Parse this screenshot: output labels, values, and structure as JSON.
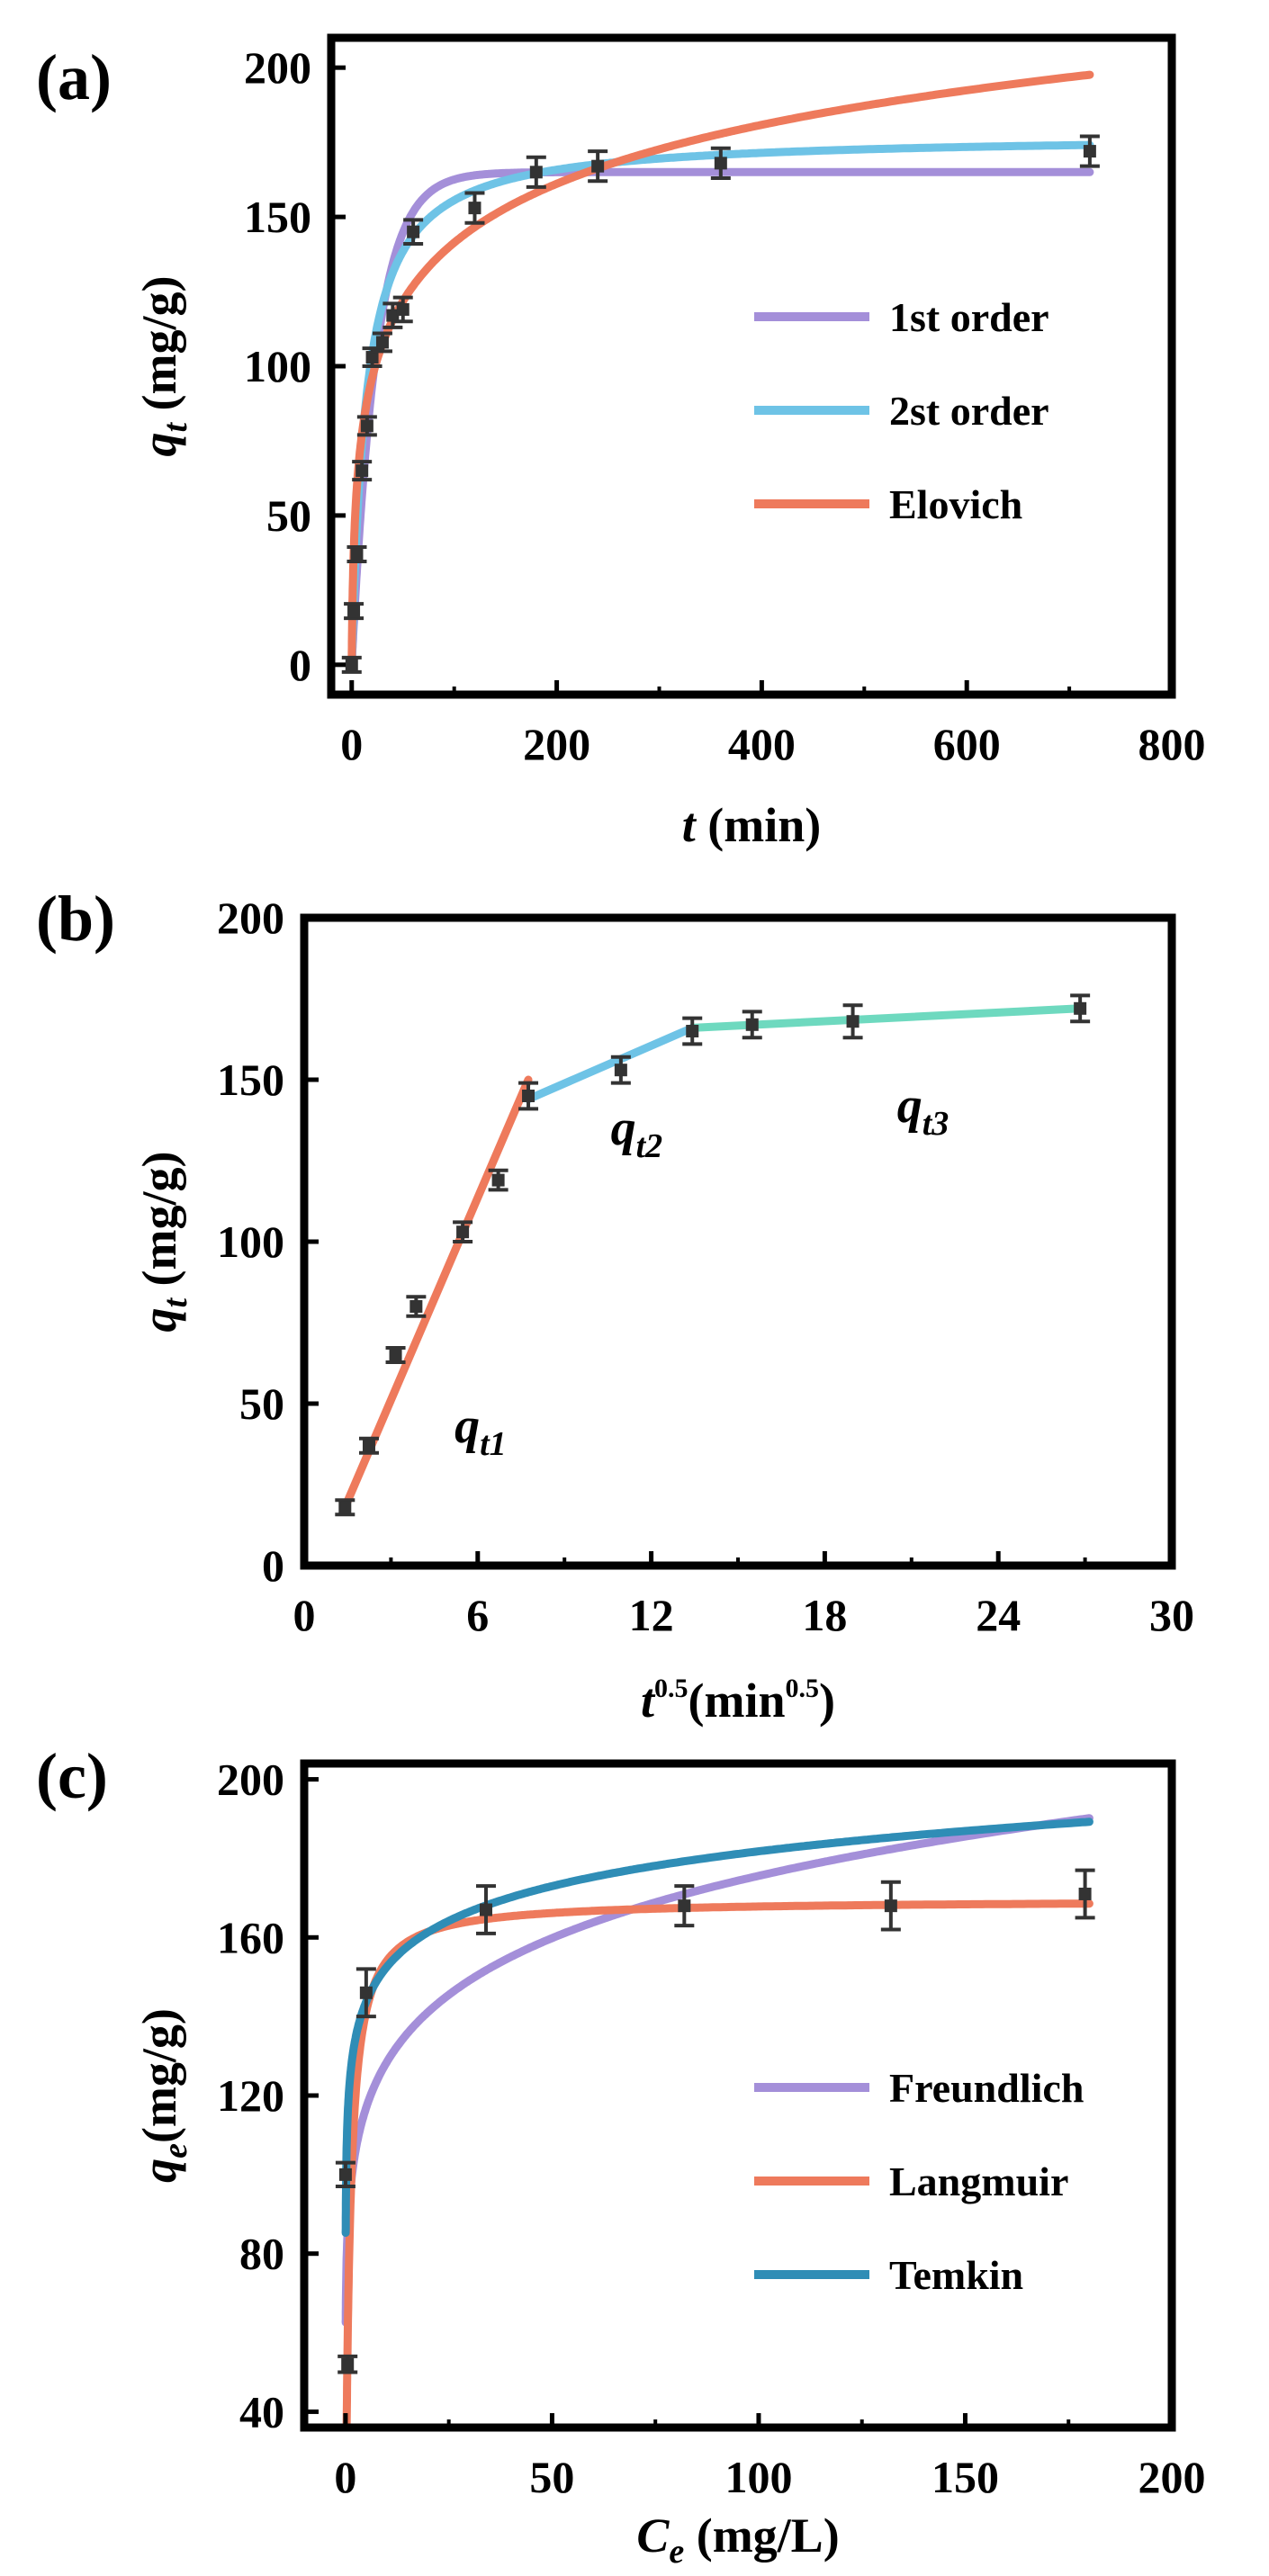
{
  "chart_data": [
    {
      "id": "a",
      "type": "line",
      "panel_label": "(a)",
      "xlabel": {
        "var": "t",
        "unit": " (min)"
      },
      "ylabel": {
        "var": "q",
        "sub": "t",
        "unit": " (mg/g)"
      },
      "xlim": [
        -20,
        800
      ],
      "ylim": [
        -10,
        210
      ],
      "xticks": [
        0,
        200,
        400,
        600,
        800
      ],
      "xtick_labels": [
        "0",
        "200",
        "400",
        "600",
        "800"
      ],
      "yticks": [
        0,
        50,
        100,
        150,
        200
      ],
      "ytick_labels": [
        "0",
        "50",
        "100",
        "150",
        "200"
      ],
      "grid": false,
      "legend_position": "center-right",
      "data_points": {
        "x": [
          0,
          2,
          5,
          10,
          15,
          20,
          30,
          40,
          50,
          60,
          120,
          180,
          240,
          360,
          720
        ],
        "y": [
          0,
          18,
          37,
          65,
          80,
          103,
          108,
          117,
          119,
          145,
          153,
          165,
          167,
          168,
          172
        ],
        "err": [
          1,
          2,
          2,
          3,
          3,
          3,
          3,
          4,
          4,
          4,
          5,
          5,
          5,
          5,
          5
        ]
      },
      "series": [
        {
          "name": "1st order",
          "color": "#a48fd9",
          "model": "pfo",
          "params": {
            "qe": 165,
            "k": 0.042
          }
        },
        {
          "name": "2st order",
          "color": "#6ec3e6",
          "model": "pso",
          "params": {
            "qe": 177.5,
            "k": 0.0004
          }
        },
        {
          "name": "Elovich",
          "color": "#ee7a5c",
          "model": "elovich",
          "params": {
            "a": 40,
            "b": 0.035
          }
        }
      ]
    },
    {
      "id": "b",
      "type": "line",
      "panel_label": "(b)",
      "xlabel": {
        "var": "t",
        "sup": "0.5",
        "unit": "(min",
        "unit_sup": "0.5",
        "unit_end": ")"
      },
      "ylabel": {
        "var": "q",
        "sub": "t",
        "unit": " (mg/g)"
      },
      "xlim": [
        0,
        30
      ],
      "ylim": [
        0,
        200
      ],
      "xticks": [
        0,
        6,
        12,
        18,
        24,
        30
      ],
      "xtick_labels": [
        "0",
        "6",
        "12",
        "18",
        "24",
        "30"
      ],
      "yticks": [
        0,
        50,
        100,
        150,
        200
      ],
      "ytick_labels": [
        "0",
        "50",
        "100",
        "150",
        "200"
      ],
      "grid": false,
      "data_points": {
        "x": [
          1.41,
          2.24,
          3.16,
          3.87,
          5.48,
          6.71,
          7.75,
          10.95,
          13.42,
          15.49,
          18.97,
          26.83
        ],
        "y": [
          18,
          37,
          65,
          80,
          103,
          119,
          145,
          153,
          165,
          167,
          168,
          172
        ],
        "err": [
          1,
          1,
          2,
          3,
          3,
          3,
          4,
          4,
          4,
          4,
          5,
          4
        ]
      },
      "series": [
        {
          "name": "qt1",
          "color": "#ee7a5c",
          "x": [
            1.41,
            7.75
          ],
          "y": [
            18,
            150
          ]
        },
        {
          "name": "qt2",
          "color": "#6ec3e6",
          "x": [
            7.75,
            13.42
          ],
          "y": [
            144,
            166
          ]
        },
        {
          "name": "qt3",
          "color": "#6ed9bf",
          "x": [
            13.42,
            26.83
          ],
          "y": [
            166,
            172
          ]
        }
      ],
      "annotations": [
        {
          "text": "q",
          "sub": "t1",
          "x": 5.2,
          "y": 38
        },
        {
          "text": "q",
          "sub": "t2",
          "x": 10.6,
          "y": 130
        },
        {
          "text": "q",
          "sub": "t3",
          "x": 20.5,
          "y": 137
        }
      ]
    },
    {
      "id": "c",
      "type": "line",
      "panel_label": "(c)",
      "xlabel": {
        "var": "C",
        "sub": "e",
        "unit": " (mg/L)"
      },
      "ylabel": {
        "var": "q",
        "sub": "e",
        "unit": "(mg/g)"
      },
      "xlim": [
        -10,
        200
      ],
      "ylim": [
        36,
        204
      ],
      "xticks": [
        0,
        50,
        100,
        150,
        200
      ],
      "xtick_labels": [
        "0",
        "50",
        "100",
        "150",
        "200"
      ],
      "yticks": [
        40,
        80,
        120,
        160,
        200
      ],
      "ytick_labels": [
        "40",
        "80",
        "120",
        "160",
        "200"
      ],
      "grid": false,
      "legend_position": "center-right",
      "data_points": {
        "x": [
          0.5,
          0,
          5,
          34,
          82,
          132,
          179
        ],
        "y": [
          52,
          100,
          146,
          167,
          168,
          168,
          171
        ],
        "err": [
          2,
          3,
          6,
          6,
          5,
          6,
          6
        ]
      },
      "series": [
        {
          "name": "Freundlich",
          "color": "#a48fd9",
          "model": "freundlich",
          "params": {
            "k": 94,
            "n": 7.37
          }
        },
        {
          "name": "Langmuir",
          "color": "#ee7a5c",
          "model": "langmuir",
          "params": {
            "qm": 169.5,
            "k": 1.0
          }
        },
        {
          "name": "Temkin",
          "color": "#2f8db6",
          "model": "temkin",
          "params": {
            "a": 123.3,
            "b": 12.7
          }
        }
      ]
    }
  ]
}
